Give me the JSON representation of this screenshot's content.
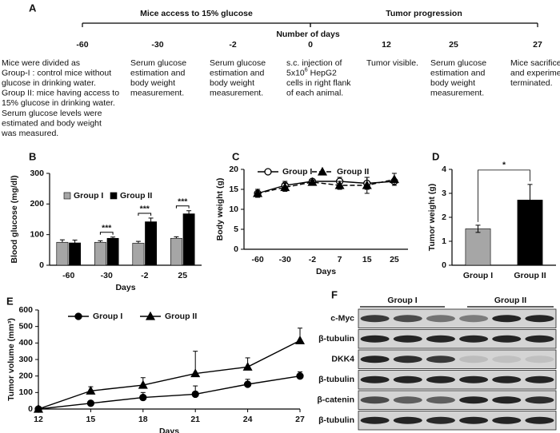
{
  "timeline": {
    "label": "A",
    "phases": [
      {
        "title": "Mice access to 15% glucose"
      },
      {
        "title": "Tumor progression"
      }
    ],
    "axis_title": "Number of days",
    "events": [
      {
        "day": -60,
        "lines": [
          "Mice were divided as",
          "Group-I : control mice without",
          "glucose in drinking water.",
          "Group II: mice having access to",
          "15% glucose in drinking water.",
          "Serum glucose levels were",
          "estimated  and body weight",
          "was measured."
        ]
      },
      {
        "day": -30,
        "lines": [
          "Serum glucose",
          "estimation and",
          "body weight",
          "measurement."
        ]
      },
      {
        "day": -2,
        "lines": [
          "Serum glucose",
          "estimation and",
          "body weight",
          "measurement."
        ]
      },
      {
        "day": 0,
        "lines": [
          "s.c. injection of",
          {
            "text": "5x10",
            "sup": "6",
            "after": " HepG2"
          },
          "cells in right flank",
          "of each animal."
        ]
      },
      {
        "day": 12,
        "lines": [
          "Tumor visible."
        ]
      },
      {
        "day": 25,
        "lines": [
          "Serum glucose",
          "estimation and",
          "body weight",
          "measurement."
        ]
      },
      {
        "day": 27,
        "lines": [
          "Mice sacrificed",
          "and experiment",
          "terminated."
        ]
      }
    ]
  },
  "chart_data": [
    {
      "panel": "B",
      "type": "bar",
      "categories": [
        "-60",
        "-30",
        "-2",
        "25"
      ],
      "series": [
        {
          "name": "Group I",
          "color": "#a6a6a6",
          "values": [
            75,
            75,
            72,
            88
          ],
          "errors": [
            8,
            5,
            6,
            5
          ]
        },
        {
          "name": "Group II",
          "color": "#000000",
          "values": [
            73,
            88,
            142,
            168
          ],
          "errors": [
            9,
            4,
            12,
            10
          ]
        }
      ],
      "significance": [
        null,
        "***",
        "***",
        "***"
      ],
      "ylim": [
        0,
        300
      ],
      "yticks": [
        0,
        100,
        200,
        300
      ],
      "ylabel": "Blood glucose (mg/dl)",
      "xlabel": "Days"
    },
    {
      "panel": "C",
      "type": "line",
      "categories": [
        "-60",
        "-30",
        "-2",
        "7",
        "15",
        "25"
      ],
      "series": [
        {
          "name": "Group I",
          "color": "#000000",
          "marker": "circle",
          "marker_fill": "#ffffff",
          "linestyle": "solid",
          "values": [
            14,
            16,
            17,
            17,
            16.5,
            17
          ],
          "errors": [
            1,
            1,
            0.6,
            1,
            1.5,
            0.5
          ]
        },
        {
          "name": "Group II",
          "color": "#000000",
          "marker": "triangle",
          "linestyle": "dashed",
          "values": [
            14,
            15.5,
            16.8,
            16,
            16,
            17.5
          ],
          "errors": [
            1,
            1,
            0.5,
            1,
            2,
            1.5
          ]
        }
      ],
      "ylim": [
        0,
        20
      ],
      "yticks": [
        0,
        5,
        10,
        15,
        20
      ],
      "ylabel": "Body  weight (g)",
      "xlabel": "Days"
    },
    {
      "panel": "D",
      "type": "bar",
      "categories": [
        "Group I",
        "Group II"
      ],
      "values": [
        1.52,
        2.72
      ],
      "errors": [
        0.15,
        0.65
      ],
      "colors": [
        "#a6a6a6",
        "#000000"
      ],
      "significance": "*",
      "ylim": [
        0,
        4
      ],
      "yticks": [
        0,
        1,
        2,
        3,
        4
      ],
      "ylabel": "Tumor  weight (g)"
    },
    {
      "panel": "E",
      "type": "line",
      "x": [
        12,
        15,
        18,
        21,
        24,
        27
      ],
      "series": [
        {
          "name": "Group I",
          "color": "#000000",
          "marker": "circle",
          "linestyle": "solid",
          "values": [
            0,
            35,
            70,
            90,
            150,
            200
          ],
          "errors": [
            0,
            10,
            30,
            50,
            30,
            25
          ]
        },
        {
          "name": "Group II",
          "color": "#000000",
          "marker": "triangle",
          "linestyle": "solid",
          "values": [
            0,
            110,
            145,
            215,
            255,
            415
          ],
          "errors": [
            0,
            25,
            45,
            135,
            55,
            75
          ]
        }
      ],
      "xlim": [
        12,
        27
      ],
      "xticks": [
        12,
        15,
        18,
        21,
        24,
        27
      ],
      "ylim": [
        0,
        600
      ],
      "yticks": [
        0,
        100,
        200,
        300,
        400,
        500,
        600
      ],
      "ylabel": "Tumor volume (mm³)",
      "xlabel": "Days"
    }
  ],
  "blot": {
    "label": "F",
    "groups": [
      "Group I",
      "Group II"
    ],
    "rows": [
      "c-Myc",
      "β-tubulin",
      "DKK4",
      "β-tubulin",
      "β-catenin",
      "β-tubulin"
    ]
  }
}
